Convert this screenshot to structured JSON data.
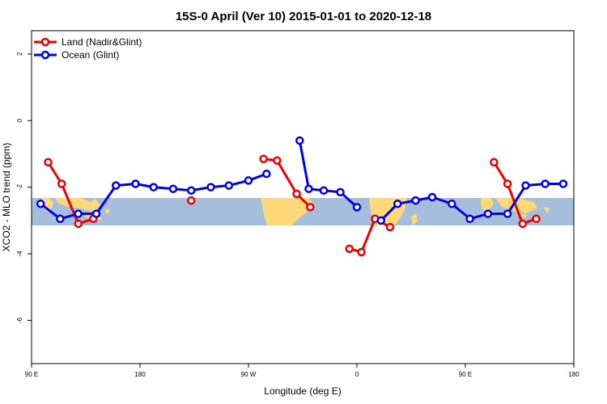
{
  "chart_data": {
    "type": "line",
    "title": "15S-0 April (Ver 10)   2015-01-01 to 2020-12-18",
    "xlabel": "Longitude (deg E)",
    "ylabel": "XCO2 - MLO trend (ppm)",
    "xlim": [
      90,
      450
    ],
    "ylim": [
      -7.3,
      2.7
    ],
    "x_ticks": [
      90,
      162,
      234,
      306,
      378,
      450
    ],
    "x_tick_labels": [
      "90 E",
      "180",
      "90 W",
      "0",
      "90 E",
      "180"
    ],
    "y_ticks": [
      -6,
      -4,
      -2,
      0,
      2
    ],
    "y_tick_labels": [
      "-6",
      "-4",
      "-2",
      "0",
      "2"
    ],
    "grid": false,
    "legend_position": "top-left",
    "background_map": "map strip showing land and ocean at the 15S latitude band",
    "series": [
      {
        "name": "Land (Nadir&Glint)",
        "color": "#ee0000",
        "segments": [
          {
            "x": [
              101,
              110,
              121,
              131
            ],
            "y": [
              -1.25,
              -1.9,
              -3.1,
              -2.95
            ]
          },
          {
            "x": [
              196
            ],
            "y": [
              -2.4
            ]
          },
          {
            "x": [
              244,
              253,
              266,
              275
            ],
            "y": [
              -1.15,
              -1.2,
              -2.2,
              -2.6
            ]
          },
          {
            "x": [
              301,
              309,
              318,
              328
            ],
            "y": [
              -3.85,
              -3.95,
              -2.95,
              -3.2
            ]
          },
          {
            "x": [
              397,
              406,
              416,
              425
            ],
            "y": [
              -1.25,
              -1.9,
              -3.1,
              -2.95
            ]
          }
        ]
      },
      {
        "name": "Ocean (Glint)",
        "color": "#0000ee",
        "segments": [
          {
            "x": [
              96,
              109,
              121,
              133,
              146,
              159,
              171,
              184,
              196,
              209,
              221,
              234,
              246
            ],
            "y": [
              -2.5,
              -2.95,
              -2.8,
              -2.8,
              -1.95,
              -1.9,
              -2.0,
              -2.05,
              -2.1,
              -2.0,
              -1.95,
              -1.8,
              -1.6
            ]
          },
          {
            "x": [
              268,
              274,
              284,
              295,
              306
            ],
            "y": [
              -0.6,
              -2.05,
              -2.1,
              -2.15,
              -2.6
            ]
          },
          {
            "x": [
              322,
              333,
              345,
              356,
              369,
              381,
              393,
              406,
              418,
              431,
              443
            ],
            "y": [
              -3.0,
              -2.5,
              -2.4,
              -2.3,
              -2.5,
              -2.95,
              -2.8,
              -2.8,
              -1.95,
              -1.9,
              -1.9
            ]
          }
        ]
      }
    ]
  }
}
